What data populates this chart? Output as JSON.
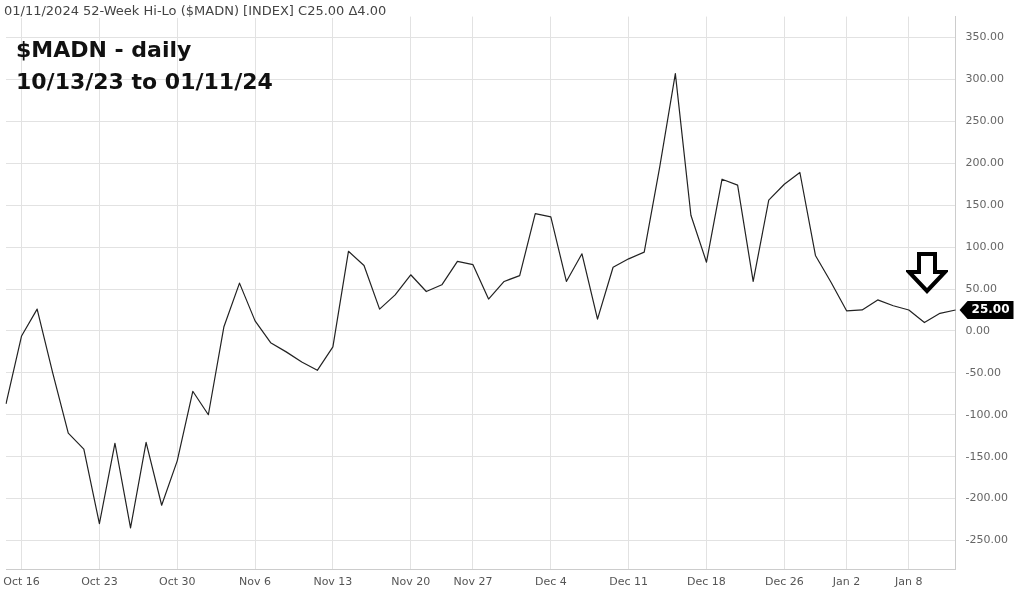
{
  "chart_data": {
    "type": "line",
    "title": "01/11/2024 52-Week Hi-Lo ($MADN) [INDEX] C25.00 Δ4.00",
    "subtitle": "$MADN - daily",
    "annotations": [
      "10/13/23 to 01/11/24",
      "25.00"
    ],
    "categories": [
      null,
      "Oct 16",
      null,
      null,
      null,
      null,
      "Oct 23",
      null,
      null,
      null,
      null,
      "Oct 30",
      null,
      null,
      null,
      null,
      "Nov 6",
      null,
      null,
      null,
      null,
      "Nov 13",
      null,
      null,
      null,
      null,
      "Nov 20",
      null,
      null,
      null,
      "Nov 27",
      null,
      null,
      null,
      null,
      "Dec 4",
      null,
      null,
      null,
      null,
      "Dec 11",
      null,
      null,
      null,
      null,
      "Dec 18",
      null,
      null,
      null,
      null,
      "Dec 26",
      null,
      null,
      null,
      "Jan 2",
      null,
      null,
      null,
      "Jan 8",
      null,
      null,
      null
    ],
    "series": [
      {
        "color": "#222222",
        "values": [
          -87,
          -6,
          26,
          -50,
          -122,
          -141,
          -230,
          -134,
          -235,
          -133,
          -208,
          -155,
          -72,
          -100,
          5,
          57,
          12,
          -14,
          -25,
          -37,
          -47,
          -19,
          95,
          78,
          26,
          43,
          67,
          47,
          55,
          83,
          79,
          38,
          59,
          66,
          140,
          136,
          59,
          92,
          14,
          76,
          86,
          94,
          196,
          307,
          138,
          82,
          181,
          174,
          59,
          156,
          175,
          189,
          90,
          58,
          24,
          25,
          37,
          30,
          25,
          10,
          21,
          25
        ]
      }
    ],
    "ylim": [
      -285,
      375
    ],
    "yticks": [
      {
        "value": -250,
        "label": "-250.00"
      },
      {
        "value": -200,
        "label": "-200.00"
      },
      {
        "value": -150,
        "label": "-150.00"
      },
      {
        "value": -100,
        "label": "-100.00"
      },
      {
        "value": -50,
        "label": "-50.00"
      },
      {
        "value": 0,
        "label": "0.00"
      },
      {
        "value": 50,
        "label": "50.00"
      },
      {
        "value": 100,
        "label": "100.00"
      },
      {
        "value": 150,
        "label": "150.00"
      },
      {
        "value": 200,
        "label": "200.00"
      },
      {
        "value": 250,
        "label": "250.00"
      },
      {
        "value": 300,
        "label": "300.00"
      },
      {
        "value": 350,
        "label": "350.00"
      }
    ],
    "grid": true,
    "legend": false,
    "marker": "none",
    "line_style": "solid"
  }
}
